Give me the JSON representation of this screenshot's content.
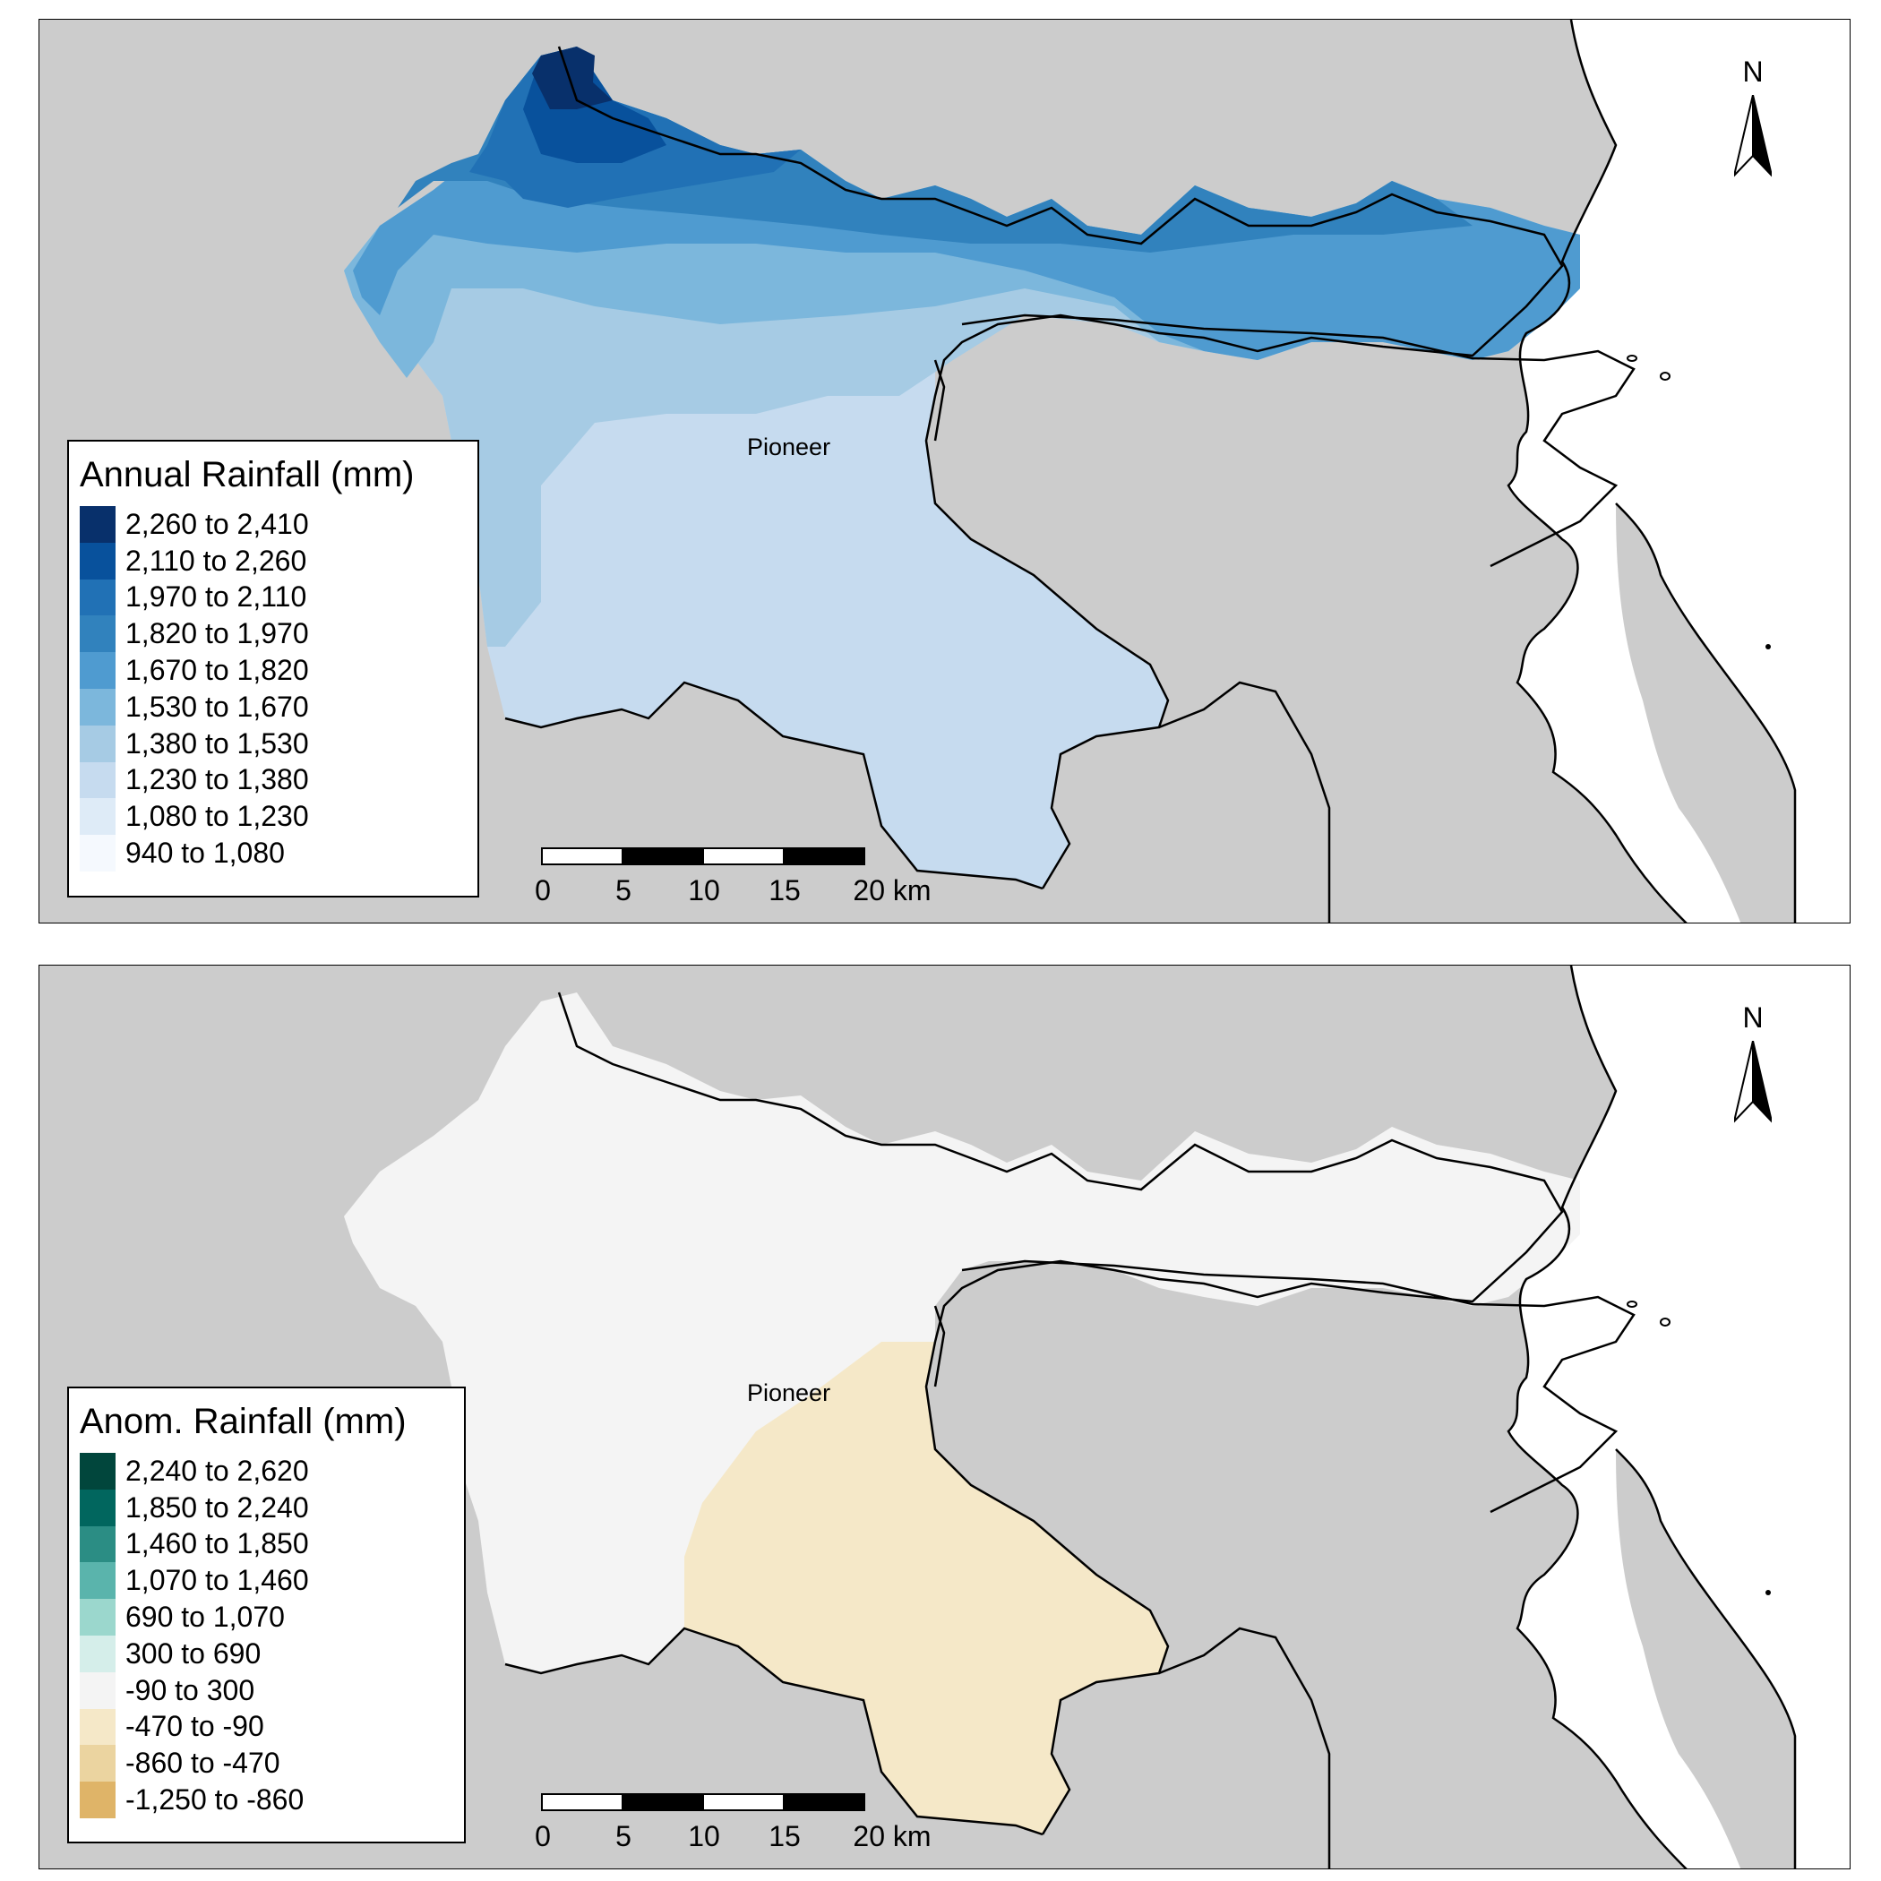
{
  "panels": [
    {
      "legend": {
        "title": "Annual Rainfall (mm)",
        "items": [
          {
            "label": "2,260 to 2,410",
            "color": "#08306b"
          },
          {
            "label": "2,110 to 2,260",
            "color": "#08519c"
          },
          {
            "label": "1,970 to 2,110",
            "color": "#2171b5"
          },
          {
            "label": "1,820 to 1,970",
            "color": "#3182bd"
          },
          {
            "label": "1,670 to 1,820",
            "color": "#4f9bd0"
          },
          {
            "label": "1,530 to 1,670",
            "color": "#7cb7dc"
          },
          {
            "label": "1,380 to 1,530",
            "color": "#a6cbe4"
          },
          {
            "label": "1,230 to 1,380",
            "color": "#c6dbef"
          },
          {
            "label": "1,080 to 1,230",
            "color": "#deebf7"
          },
          {
            "label": "940 to 1,080",
            "color": "#f5f9fe"
          }
        ]
      },
      "place_label": "Pioneer",
      "north_label": "N",
      "scale": {
        "ticks": [
          "0",
          "5",
          "10",
          "15",
          "20 km"
        ]
      }
    },
    {
      "legend": {
        "title": "Anom. Rainfall (mm)",
        "items": [
          {
            "label": "2,240 to 2,620",
            "color": "#01463c"
          },
          {
            "label": "1,850 to 2,240",
            "color": "#01665e"
          },
          {
            "label": "1,460 to 1,850",
            "color": "#2b8d84"
          },
          {
            "label": "1,070 to 1,460",
            "color": "#5ab4ac"
          },
          {
            "label": "690 to 1,070",
            "color": "#9bd7cd"
          },
          {
            "label": "300 to 690",
            "color": "#d5eeea"
          },
          {
            "label": "-90 to 300",
            "color": "#f4f4f4"
          },
          {
            "label": "-470 to -90",
            "color": "#f5e8c8"
          },
          {
            "label": "-860 to -470",
            "color": "#ebd4a0"
          },
          {
            "label": "-1,250 to -860",
            "color": "#dfb468"
          }
        ]
      },
      "place_label": "Pioneer",
      "north_label": "N",
      "scale": {
        "ticks": [
          "0",
          "5",
          "10",
          "15",
          "20 km"
        ]
      }
    }
  ]
}
